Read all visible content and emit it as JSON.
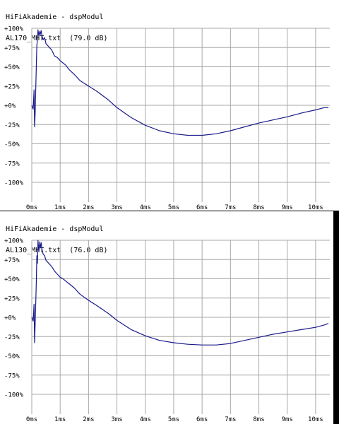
{
  "colors": {
    "grid": "#a8a8a8",
    "curve": "#1a1a8c",
    "background": "#ffffff",
    "frame": "#000000"
  },
  "chart_data": [
    {
      "type": "line",
      "app_title": "HiFiAkademie - dspModul",
      "file_label": "AL170_MHT.txt  (79.0 dB)",
      "xlabel": "",
      "ylabel": "",
      "x_ticks": [
        "0ms",
        "1ms",
        "2ms",
        "3ms",
        "4ms",
        "5ms",
        "6ms",
        "7ms",
        "8ms",
        "9ms",
        "10ms"
      ],
      "y_ticks": [
        "+100%",
        "+75%",
        "+50%",
        "+25%",
        "+0%",
        "-25%",
        "-50%",
        "-75%",
        "-100%"
      ],
      "xlim": [
        0,
        10.5
      ],
      "ylim": [
        -100,
        100
      ],
      "grid": true,
      "series": [
        {
          "x": [
            0,
            0.05,
            0.08,
            0.1,
            0.12,
            0.14,
            0.16,
            0.18,
            0.2,
            0.22,
            0.25,
            0.28,
            0.3,
            0.33,
            0.36,
            0.4,
            0.45,
            0.5,
            0.6,
            0.7,
            0.8,
            0.9,
            1.0,
            1.1,
            1.2,
            1.3,
            1.5,
            1.7,
            2.0,
            2.3,
            2.7,
            3.0,
            3.5,
            4.0,
            4.5,
            5.0,
            5.5,
            6.0,
            6.5,
            7.0,
            7.5,
            8.0,
            8.5,
            9.0,
            9.5,
            10.0,
            10.3,
            10.45
          ],
          "y": [
            0,
            -5,
            20,
            -28,
            -10,
            20,
            50,
            78,
            85,
            98,
            90,
            96,
            92,
            97,
            90,
            85,
            88,
            80,
            76,
            72,
            64,
            62,
            58,
            55,
            52,
            47,
            40,
            32,
            25,
            18,
            7,
            -3,
            -16,
            -26,
            -33,
            -37,
            -39,
            -39,
            -37,
            -33,
            -28,
            -23,
            -19,
            -15,
            -10,
            -6,
            -3,
            -3
          ]
        }
      ]
    },
    {
      "type": "line",
      "app_title": "HiFiAkademie - dspModul",
      "file_label": "AL130_MHT.txt  (76.0 dB)",
      "xlabel": "",
      "ylabel": "",
      "x_ticks": [
        "0ms",
        "1ms",
        "2ms",
        "3ms",
        "4ms",
        "5ms",
        "6ms",
        "7ms",
        "8ms",
        "9ms",
        "10ms"
      ],
      "y_ticks": [
        "+100%",
        "+75%",
        "+50%",
        "+25%",
        "+0%",
        "-25%",
        "-50%",
        "-75%",
        "-100%"
      ],
      "xlim": [
        0,
        10.5
      ],
      "ylim": [
        -100,
        100
      ],
      "grid": true,
      "series": [
        {
          "x": [
            0,
            0.05,
            0.08,
            0.1,
            0.12,
            0.14,
            0.16,
            0.18,
            0.2,
            0.22,
            0.25,
            0.28,
            0.3,
            0.33,
            0.36,
            0.4,
            0.45,
            0.5,
            0.6,
            0.7,
            0.8,
            0.9,
            1.0,
            1.1,
            1.2,
            1.3,
            1.5,
            1.7,
            2.0,
            2.3,
            2.7,
            3.0,
            3.5,
            4.0,
            4.5,
            5.0,
            5.5,
            6.0,
            6.5,
            7.0,
            7.5,
            8.0,
            8.5,
            9.0,
            9.5,
            10.0,
            10.3,
            10.45
          ],
          "y": [
            0,
            -5,
            17,
            -33,
            -8,
            18,
            45,
            80,
            70,
            100,
            85,
            98,
            90,
            97,
            88,
            82,
            80,
            74,
            70,
            66,
            60,
            56,
            52,
            50,
            47,
            44,
            38,
            30,
            22,
            15,
            5,
            -4,
            -16,
            -24,
            -30,
            -33,
            -35,
            -36,
            -36,
            -34,
            -30,
            -26,
            -22,
            -19,
            -16,
            -13,
            -10,
            -8
          ]
        }
      ]
    }
  ]
}
